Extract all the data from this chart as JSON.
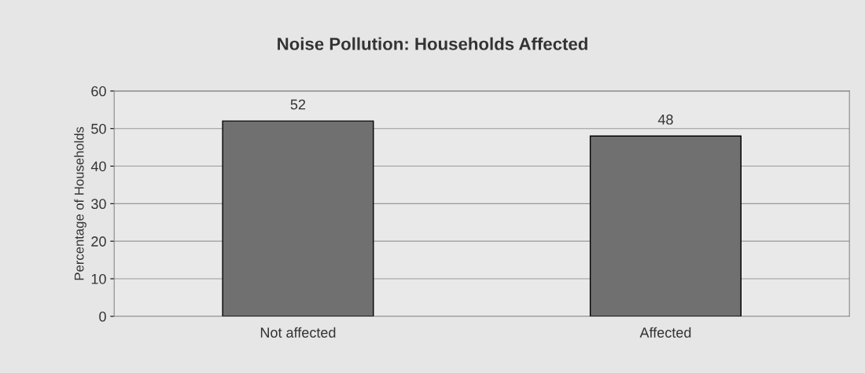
{
  "chart_data": {
    "type": "bar",
    "title": "Noise Pollution: Households Affected",
    "ylabel": "Percentage of Households",
    "categories": [
      "Not affected",
      "Affected"
    ],
    "values": [
      52,
      48
    ],
    "color": "#707070",
    "ylim": [
      0,
      60
    ],
    "yticks": [
      0,
      10,
      20,
      30,
      40,
      50,
      60
    ],
    "grid": "y",
    "data_labels": true
  }
}
